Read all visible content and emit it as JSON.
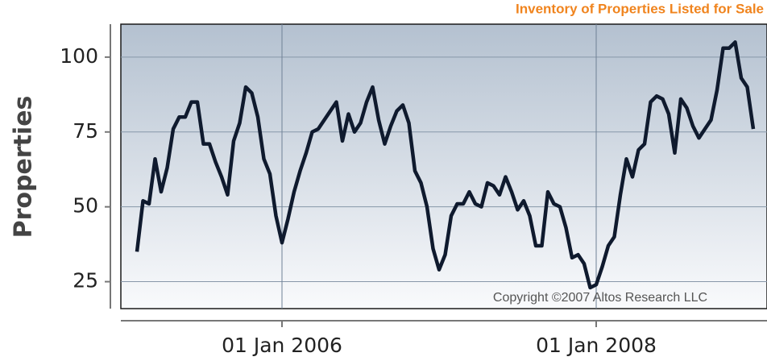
{
  "chart_data": {
    "type": "line",
    "title": "Inventory of Properties Listed for Sale",
    "y_label": "Properties",
    "annotation": "Copyright ©2007 Altos Research LLC",
    "categories": [
      null,
      null,
      null,
      null,
      null,
      null,
      null,
      null,
      null,
      null,
      null,
      null,
      null,
      null,
      null,
      null,
      null,
      null,
      null,
      null,
      null,
      null,
      null,
      null,
      "01 Jan 2006",
      null,
      null,
      null,
      null,
      null,
      null,
      null,
      null,
      null,
      null,
      null,
      null,
      null,
      null,
      null,
      null,
      null,
      null,
      null,
      null,
      null,
      null,
      null,
      null,
      null,
      null,
      null,
      null,
      null,
      null,
      null,
      null,
      null,
      null,
      null,
      null,
      null,
      null,
      null,
      null,
      null,
      null,
      null,
      null,
      null,
      null,
      null,
      null,
      null,
      null,
      null,
      "01 Jan 2008",
      null,
      null,
      null,
      null,
      null,
      null,
      null,
      null,
      null,
      null,
      null,
      null,
      null,
      null,
      null,
      null,
      null,
      null,
      null,
      null,
      null,
      null,
      null,
      null,
      null,
      null
    ],
    "series": [
      {
        "name": "Properties",
        "color": "#0f1a2e",
        "values": [
          35,
          52,
          51,
          66,
          55,
          63,
          76,
          80,
          80,
          85,
          85,
          71,
          71,
          65,
          60,
          54,
          72,
          78,
          90,
          88,
          80,
          66,
          61,
          47,
          38,
          46,
          55,
          62,
          68,
          75,
          76,
          79,
          82,
          85,
          72,
          81,
          75,
          78,
          85,
          90,
          79,
          71,
          77,
          82,
          84,
          78,
          62,
          58,
          50,
          36,
          29,
          34,
          47,
          51,
          51,
          55,
          51,
          50,
          58,
          57,
          54,
          60,
          55,
          49,
          52,
          47,
          37,
          37,
          55,
          51,
          50,
          43,
          33,
          34,
          31,
          23,
          24,
          30,
          37,
          40,
          54,
          66,
          60,
          69,
          71,
          85,
          87,
          86,
          81,
          68,
          86,
          83,
          77,
          73,
          76,
          79,
          89,
          103,
          103,
          105,
          93,
          90,
          76
        ]
      }
    ],
    "ylim": [
      16,
      111
    ],
    "yticks": [
      25,
      50,
      75,
      100
    ],
    "grid": true
  }
}
